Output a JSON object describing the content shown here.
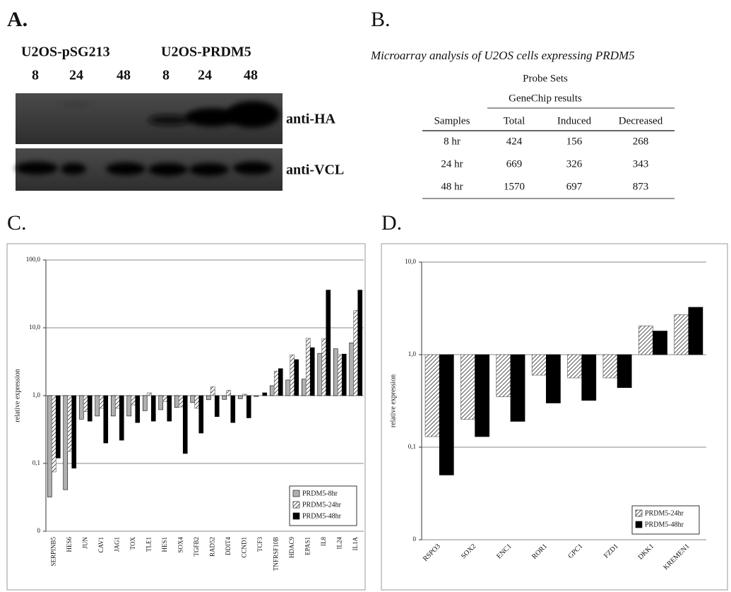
{
  "panel_a": {
    "label": "A.",
    "groups": [
      "U2OS-pSG213",
      "U2OS-PRDM5"
    ],
    "lanes": [
      "8",
      "24",
      "48",
      "8",
      "24",
      "48"
    ],
    "blots": [
      "anti-HA",
      "anti-VCL"
    ]
  },
  "panel_b": {
    "label": "B.",
    "title": "Microarray analysis of U2OS cells expressing PRDM5",
    "super_header": "Probe Sets",
    "group_header": "GeneChip results",
    "header": [
      "Samples",
      "Total",
      "Induced",
      "Decreased"
    ],
    "rows": [
      [
        "8 hr",
        424,
        156,
        268
      ],
      [
        "24 hr",
        669,
        326,
        343
      ],
      [
        "48 hr",
        1570,
        697,
        873
      ]
    ]
  },
  "chart_data": [
    {
      "type": "bar",
      "panel_label": "C.",
      "y_label": "relative expression",
      "log_scale": true,
      "grid": true,
      "legend_position": "lower right",
      "categories": [
        "SERPINB5",
        "HES6",
        "JUN",
        "CAV1",
        "JAG1",
        "TOX",
        "TLE1",
        "HES1",
        "SOX4",
        "TGFB2",
        "RAD52",
        "DDIT4",
        "CCND1",
        "TCF3",
        "TNFRSF10B",
        "HDAC9",
        "EPAS1",
        "IL8",
        "IL24",
        "IL1A"
      ],
      "series": [
        {
          "name": "PRDM5-8hr",
          "color": "#b0b0b0",
          "hatched": false,
          "values": [
            0.032,
            0.041,
            0.45,
            0.5,
            0.5,
            0.5,
            0.6,
            0.62,
            0.67,
            0.79,
            0.87,
            0.88,
            0.9,
            0.97,
            1.4,
            1.7,
            1.75,
            4.2,
            4.9,
            6
          ]
        },
        {
          "name": "PRDM5-24hr",
          "color": "#555555",
          "hatched": true,
          "values": [
            0.075,
            0.15,
            0.58,
            0.65,
            0.65,
            0.73,
            1.1,
            0.82,
            0.68,
            0.65,
            1.35,
            1.2,
            1.05,
            1.0,
            2.3,
            4,
            7,
            6.9,
            4,
            18
          ]
        },
        {
          "name": "PRDM5-48hr",
          "color": "#000000",
          "hatched": false,
          "values": [
            0.12,
            0.085,
            0.42,
            0.2,
            0.22,
            0.4,
            0.42,
            0.42,
            0.14,
            0.28,
            0.49,
            0.4,
            0.47,
            1.1,
            2.5,
            3.4,
            5.1,
            36,
            4.1,
            36
          ]
        }
      ],
      "ylim": [
        0.01,
        100
      ],
      "yticks": [
        {
          "value": 0.01,
          "label": "0"
        },
        {
          "value": 0.1,
          "label": "0,1"
        },
        {
          "value": 1,
          "label": "1,0"
        },
        {
          "value": 10,
          "label": "10,0"
        },
        {
          "value": 100,
          "label": "100,0"
        }
      ]
    },
    {
      "type": "bar",
      "panel_label": "D.",
      "y_label": "relative expression",
      "log_scale": true,
      "grid": true,
      "legend_position": "lower right",
      "categories": [
        "RSPO3",
        "SOX2",
        "ENC1",
        "ROR1",
        "GPC1",
        "FZD1",
        "DKK1",
        "KREMEN1"
      ],
      "series": [
        {
          "name": "PRDM5-24hr",
          "color": "#555555",
          "hatched": true,
          "values": [
            0.13,
            0.2,
            0.35,
            0.6,
            0.56,
            0.56,
            2.05,
            2.7
          ]
        },
        {
          "name": "PRDM5-48hr",
          "color": "#000000",
          "hatched": false,
          "values": [
            0.05,
            0.13,
            0.19,
            0.3,
            0.32,
            0.44,
            1.8,
            3.25
          ]
        }
      ],
      "ylim": [
        0.01,
        10
      ],
      "yticks": [
        {
          "value": 0.01,
          "label": "0"
        },
        {
          "value": 0.1,
          "label": "0,1"
        },
        {
          "value": 1,
          "label": "1,0"
        },
        {
          "value": 10,
          "label": "10,0"
        }
      ]
    }
  ]
}
